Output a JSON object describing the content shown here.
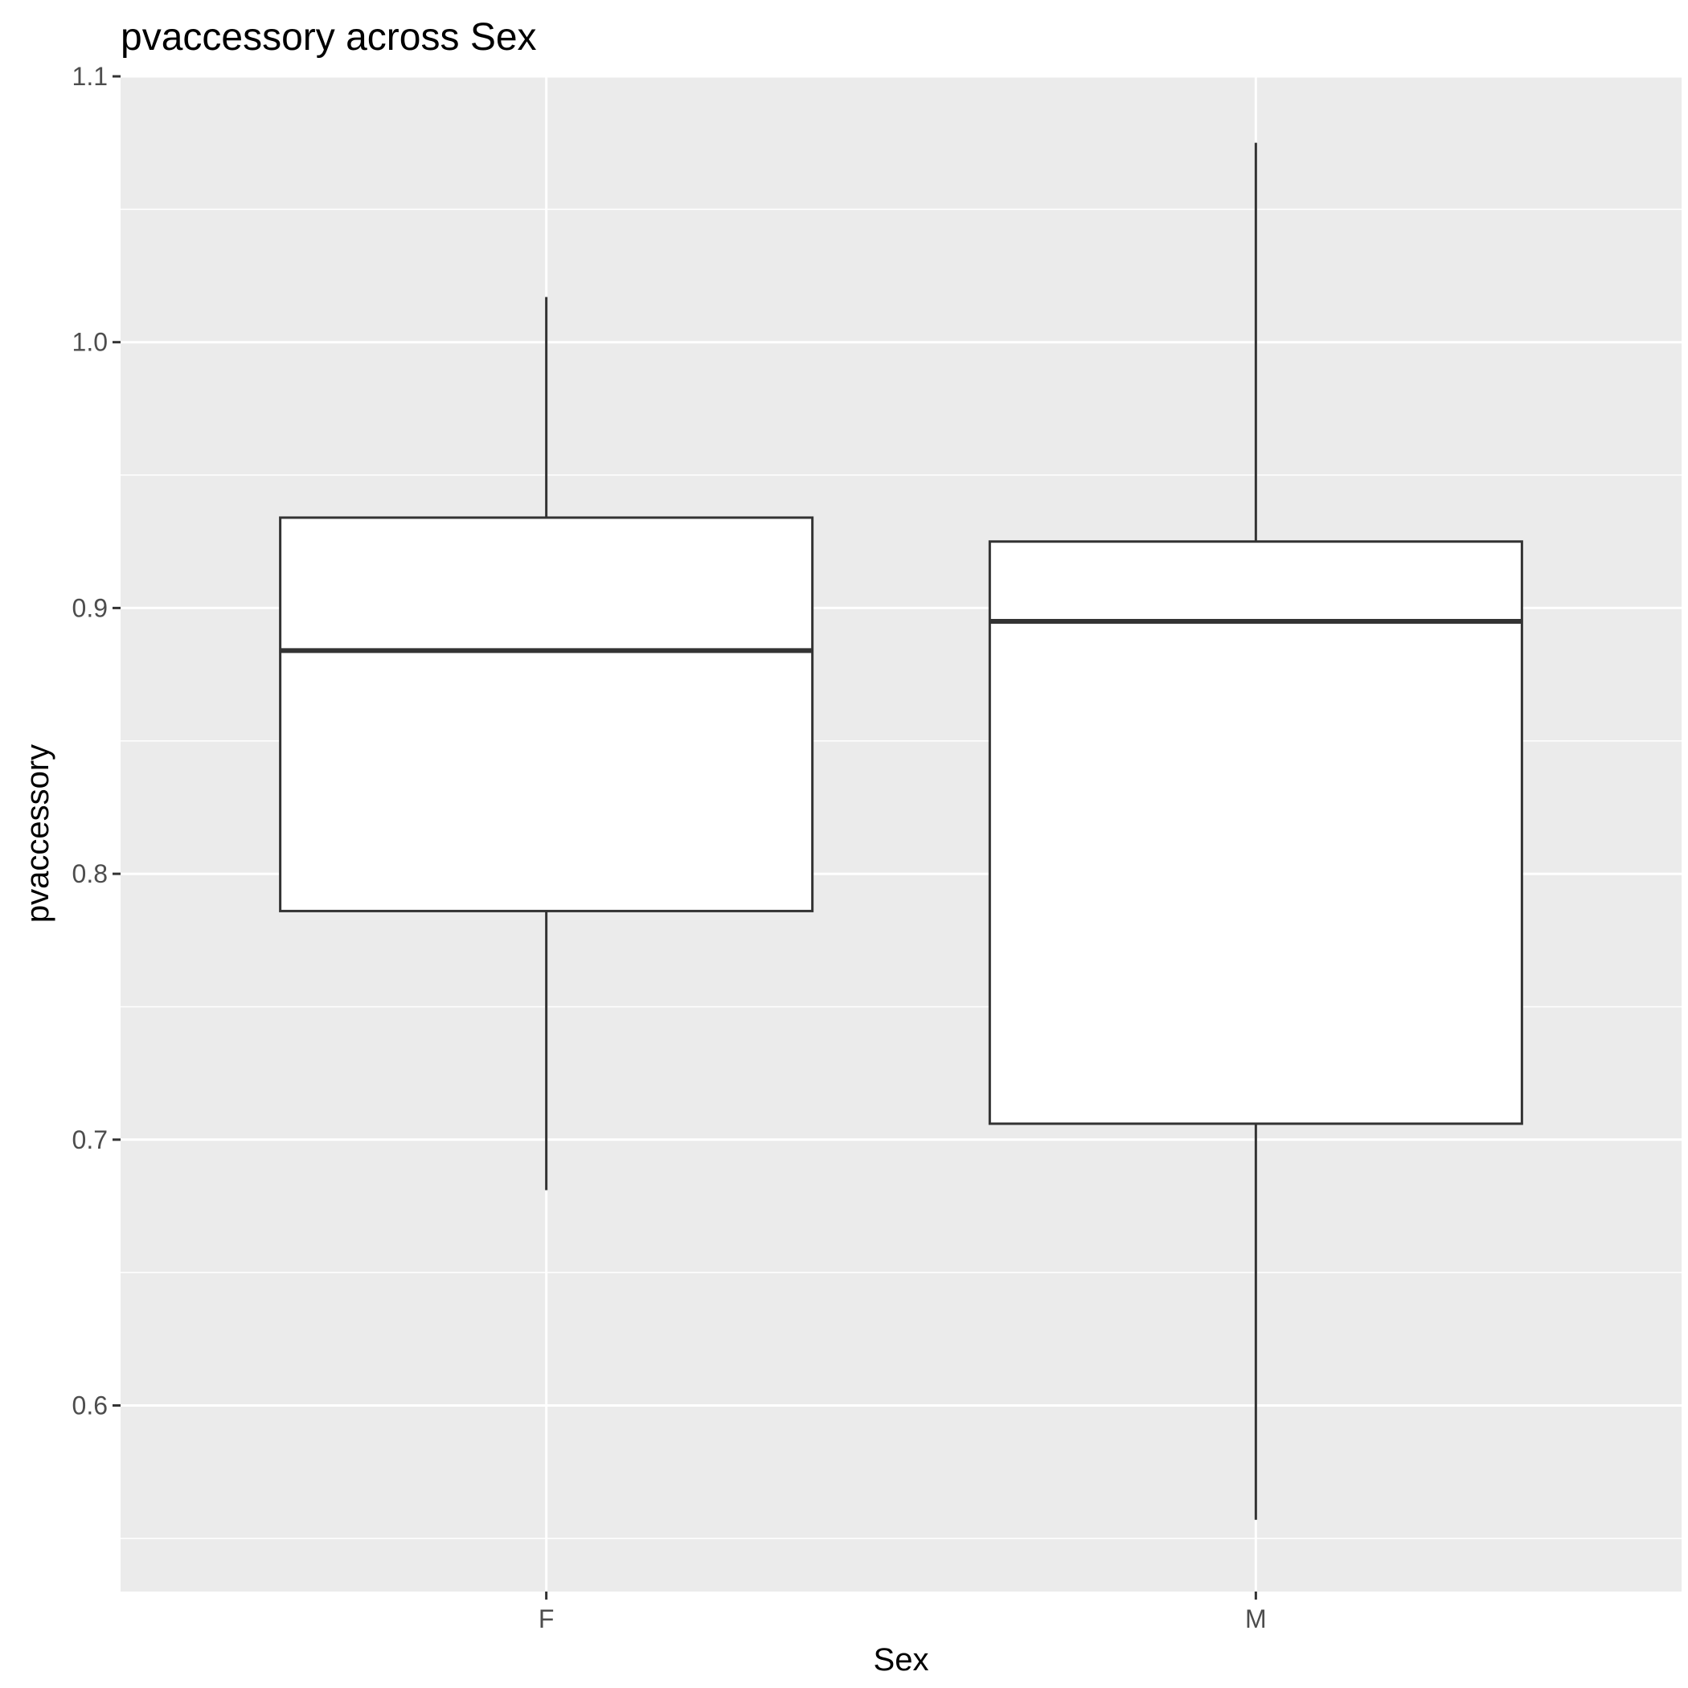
{
  "chart_data": {
    "type": "boxplot",
    "title": "pvaccessory across Sex",
    "xlabel": "Sex",
    "ylabel": "pvaccessory",
    "categories": [
      "F",
      "M"
    ],
    "ylim": [
      0.53,
      1.1
    ],
    "y_ticks": [
      "0.6",
      "0.7",
      "0.8",
      "0.9",
      "1.0",
      "1.1"
    ],
    "grid": true,
    "legend": "none",
    "boxes": [
      {
        "category": "F",
        "whisker_low": 0.681,
        "q1": 0.786,
        "median": 0.884,
        "q3": 0.934,
        "whisker_high": 1.017
      },
      {
        "category": "M",
        "whisker_low": 0.557,
        "q1": 0.706,
        "median": 0.895,
        "q3": 0.925,
        "whisker_high": 1.075
      }
    ],
    "colors": {
      "panel": "#ebebeb",
      "grid": "#ffffff",
      "box_fill": "#ffffff",
      "box_stroke": "#333333",
      "tick": "#333333"
    }
  }
}
